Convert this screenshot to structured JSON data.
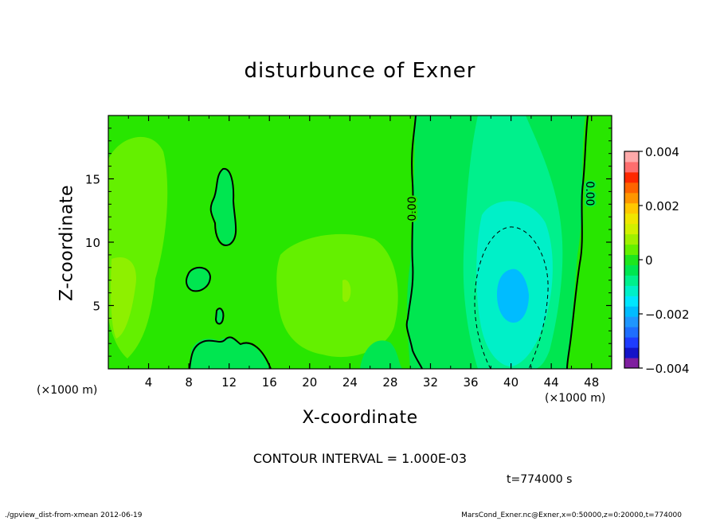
{
  "chart_data": {
    "type": "heatmap",
    "title": "disturbunce of Exner",
    "xlabel": "X-coordinate",
    "ylabel": "Z-coordinate",
    "x_unit": "(×1000 m)",
    "xlim": [
      0,
      50
    ],
    "ylim": [
      0,
      20
    ],
    "x_ticks": [
      4,
      8,
      12,
      16,
      20,
      24,
      28,
      32,
      36,
      40,
      44,
      48
    ],
    "y_ticks": [
      5,
      10,
      15
    ],
    "colorbar": {
      "range": [
        -0.004,
        0.004
      ],
      "tick_labels": [
        "0.004",
        "0.002",
        "0",
        "−0.002",
        "−0.004"
      ],
      "tick_values": [
        0.004,
        0.002,
        0,
        -0.002,
        -0.004
      ],
      "colors": [
        "#7f1f9f",
        "#1414c8",
        "#1e3cff",
        "#1e6eff",
        "#1e96ff",
        "#00bcff",
        "#00e6ff",
        "#00f0c8",
        "#00f08c",
        "#00e650",
        "#1ee61e",
        "#64f000",
        "#a0f000",
        "#d2f000",
        "#f0e600",
        "#ffc800",
        "#ff9600",
        "#ff6400",
        "#ff2800",
        "#ff6e6e",
        "#ffaaaa"
      ]
    },
    "contour_labels": [
      "0.00",
      "0.00"
    ],
    "contour_interval_text": "CONTOUR INTERVAL = 1.000E-03",
    "grid": false
  },
  "time_text": "t=774000 s",
  "footer": {
    "left": "./gpview_dist-from-xmean  2012-06-19",
    "right": "MarsCond_Exner.nc@Exner,x=0:50000,z=0:20000,t=774000"
  },
  "colors": {
    "background_field": "#28e600",
    "light_positive": "#64f000",
    "mid_positive": "#8ef000",
    "weak_negative": "#00e650",
    "negative": "#00f08c",
    "more_negative": "#00f0c8",
    "min_core": "#00bcff"
  }
}
